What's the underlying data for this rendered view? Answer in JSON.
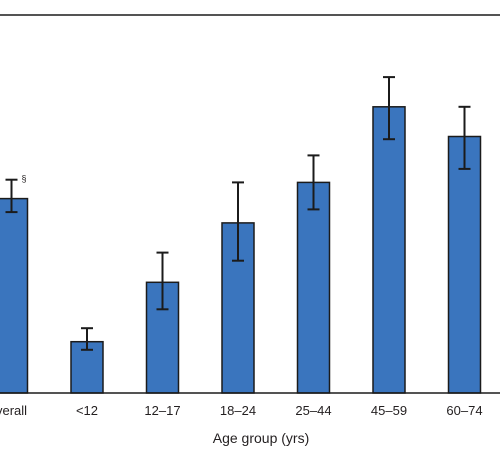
{
  "chart_data": {
    "type": "bar",
    "xlabel": "Age group (yrs)",
    "ylabel": "",
    "categories": [
      "Overall",
      "<12",
      "12–17",
      "18–24",
      "25–44",
      "45–59",
      "60–74"
    ],
    "visible_labels": [
      "verall",
      "<12",
      "12–17",
      "18–24",
      "25–44",
      "45–59",
      "60–74"
    ],
    "values": [
      7.2,
      1.9,
      4.1,
      6.3,
      7.8,
      10.6,
      9.5
    ],
    "error_low": [
      6.7,
      1.6,
      3.1,
      4.9,
      6.8,
      9.4,
      8.3
    ],
    "error_high": [
      7.9,
      2.4,
      5.2,
      7.8,
      8.8,
      11.7,
      10.6
    ],
    "annotations": [
      {
        "category": "Overall",
        "text": "§"
      }
    ],
    "ylim": [
      0,
      14
    ],
    "grid": false,
    "colors": {
      "bar": "#3a75be",
      "bar_edge": "#1b1b1b",
      "error_bar": "#1b1b1b",
      "axis": "#1b1b1b"
    }
  }
}
